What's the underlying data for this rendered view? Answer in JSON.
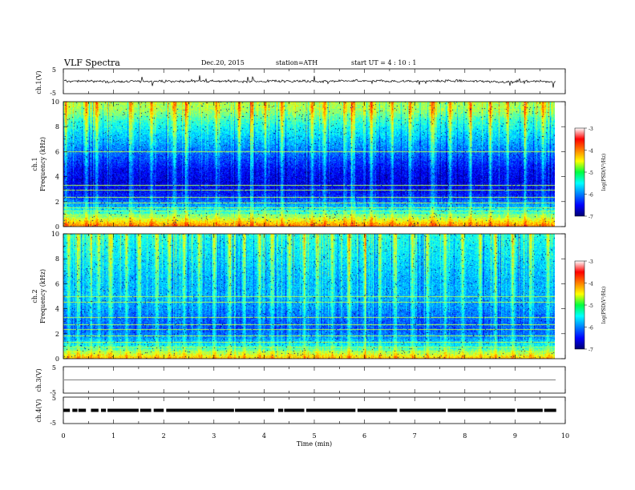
{
  "header": {
    "title": "VLF  Spectra",
    "date": "Dec.20, 2015",
    "station": "station=ATH",
    "start": "start  UT  =   4  : 10 : 1"
  },
  "chart_data": [
    {
      "type": "line",
      "panel": "ch1-waveform",
      "ylabel": "ch.1(V)",
      "ylim": [
        -5,
        5
      ],
      "yticks": [
        "5",
        "-5"
      ],
      "xlim": [
        0,
        10
      ],
      "data_xrange": [
        0,
        9.82
      ],
      "series": [
        {
          "values_summary": {
            "mean": 0,
            "noise_amplitude": 0.5,
            "spike_amplitude": 1.5
          }
        }
      ],
      "color": "#000000"
    },
    {
      "type": "heatmap",
      "panel": "ch1-spectrogram",
      "ylabel": "ch.1\nFrequency (kHz)",
      "ylim": [
        0,
        10
      ],
      "yticks": [
        "0",
        "2",
        "4",
        "6",
        "8",
        "10"
      ],
      "xlim": [
        0,
        10
      ],
      "data_xrange": [
        0,
        9.82
      ],
      "colorbar": {
        "label": "log(PSD(V²/Hz)",
        "range": [
          -7,
          -3
        ],
        "ticks": [
          "-3",
          "-4",
          "-5",
          "-6",
          "-7"
        ]
      },
      "profile_kHz": [
        [
          0,
          -4.0
        ],
        [
          0.5,
          -4.6
        ],
        [
          1.0,
          -5.2
        ],
        [
          1.6,
          -5.8
        ],
        [
          2.5,
          -6.4
        ],
        [
          3.5,
          -6.6
        ],
        [
          4.5,
          -6.5
        ],
        [
          5.5,
          -6.2
        ],
        [
          6.5,
          -5.9
        ],
        [
          7.5,
          -5.6
        ],
        [
          8.5,
          -5.3
        ],
        [
          9.3,
          -4.9
        ],
        [
          10,
          -4.8
        ]
      ],
      "horizontal_lines_kHz": [
        0.3,
        0.6,
        0.9,
        1.2,
        1.5,
        1.9,
        2.3,
        2.9,
        3.3,
        6.0
      ],
      "burst_times_min": [
        0.05,
        0.45,
        0.66,
        1.35,
        1.75,
        2.2,
        2.45,
        3.05,
        3.5,
        3.75,
        4.0,
        4.35,
        4.95,
        5.2,
        5.6,
        5.75,
        6.15,
        6.55,
        6.9,
        7.35,
        7.7,
        8.1,
        8.5,
        8.85,
        9.2,
        9.55
      ]
    },
    {
      "type": "heatmap",
      "panel": "ch2-spectrogram",
      "ylabel": "ch.2\nFrequency (kHz)",
      "ylim": [
        0,
        10
      ],
      "yticks": [
        "0",
        "2",
        "4",
        "6",
        "8",
        "10"
      ],
      "xlim": [
        0,
        10
      ],
      "data_xrange": [
        0,
        9.82
      ],
      "colorbar": {
        "label": "log(PSD(V²/Hz)",
        "range": [
          -7,
          -3
        ],
        "ticks": [
          "-3",
          "-4",
          "-5",
          "-6",
          "-7"
        ]
      },
      "profile_kHz": [
        [
          0,
          -4.3
        ],
        [
          0.5,
          -4.9
        ],
        [
          1.0,
          -5.5
        ],
        [
          1.6,
          -5.9
        ],
        [
          2.4,
          -6.2
        ],
        [
          3.2,
          -6.1
        ],
        [
          4.2,
          -5.9
        ],
        [
          5.2,
          -5.8
        ],
        [
          6.2,
          -5.8
        ],
        [
          7.2,
          -5.7
        ],
        [
          8.2,
          -5.6
        ],
        [
          9.2,
          -5.5
        ],
        [
          10,
          -5.4
        ]
      ],
      "horizontal_lines_kHz": [
        0.5,
        0.9,
        1.3,
        1.8,
        2.3,
        2.7,
        3.3,
        4.5,
        5.0
      ],
      "burst_times_min": [
        0.1,
        0.3,
        0.55,
        0.7,
        0.95,
        1.25,
        1.5,
        1.85,
        2.1,
        2.4,
        2.7,
        3.0,
        3.3,
        3.6,
        3.9,
        4.15,
        4.5,
        4.8,
        5.05,
        5.35,
        5.7,
        6.0,
        6.3,
        6.6,
        6.95,
        7.25,
        7.6,
        7.95,
        8.3,
        8.6,
        8.95,
        9.3,
        9.65
      ]
    },
    {
      "type": "line",
      "panel": "ch3-waveform",
      "ylabel": "ch.3(V)",
      "ylim": [
        -5,
        5
      ],
      "yticks": [
        "5",
        "-5"
      ],
      "xlim": [
        0,
        10
      ],
      "data_xrange": [
        0,
        9.82
      ],
      "series": [
        {
          "values_summary": {
            "mean": 0,
            "noise_amplitude": 0.05
          }
        }
      ],
      "color": "#000000"
    },
    {
      "type": "line",
      "panel": "ch4-waveform",
      "ylabel": "ch.4(V)",
      "ylim": [
        -5,
        5
      ],
      "yticks": [
        "5",
        "-5"
      ],
      "xlim": [
        0,
        10
      ],
      "data_xrange": [
        0,
        9.82
      ],
      "series": [
        {
          "values_summary": {
            "mean": 0,
            "band_amplitude": 0.6
          }
        }
      ],
      "gaps_min": [
        [
          0.13,
          0.18
        ],
        [
          0.28,
          0.3
        ],
        [
          0.45,
          0.55
        ],
        [
          0.7,
          0.75
        ],
        [
          0.85,
          0.88
        ],
        [
          1.5,
          1.53
        ],
        [
          1.75,
          1.8
        ],
        [
          2.0,
          2.05
        ],
        [
          3.4,
          3.42
        ],
        [
          4.2,
          4.28
        ],
        [
          4.38,
          4.4
        ],
        [
          4.8,
          4.84
        ],
        [
          5.82,
          5.86
        ],
        [
          6.65,
          6.7
        ],
        [
          7.62,
          7.66
        ],
        [
          9.0,
          9.04
        ],
        [
          9.55,
          9.58
        ]
      ],
      "color": "#000000"
    }
  ],
  "xaxis": {
    "label": "Time  (min)",
    "ticks": [
      "0",
      "1",
      "2",
      "3",
      "4",
      "5",
      "6",
      "7",
      "8",
      "9",
      "10"
    ],
    "range": [
      0,
      10
    ]
  }
}
